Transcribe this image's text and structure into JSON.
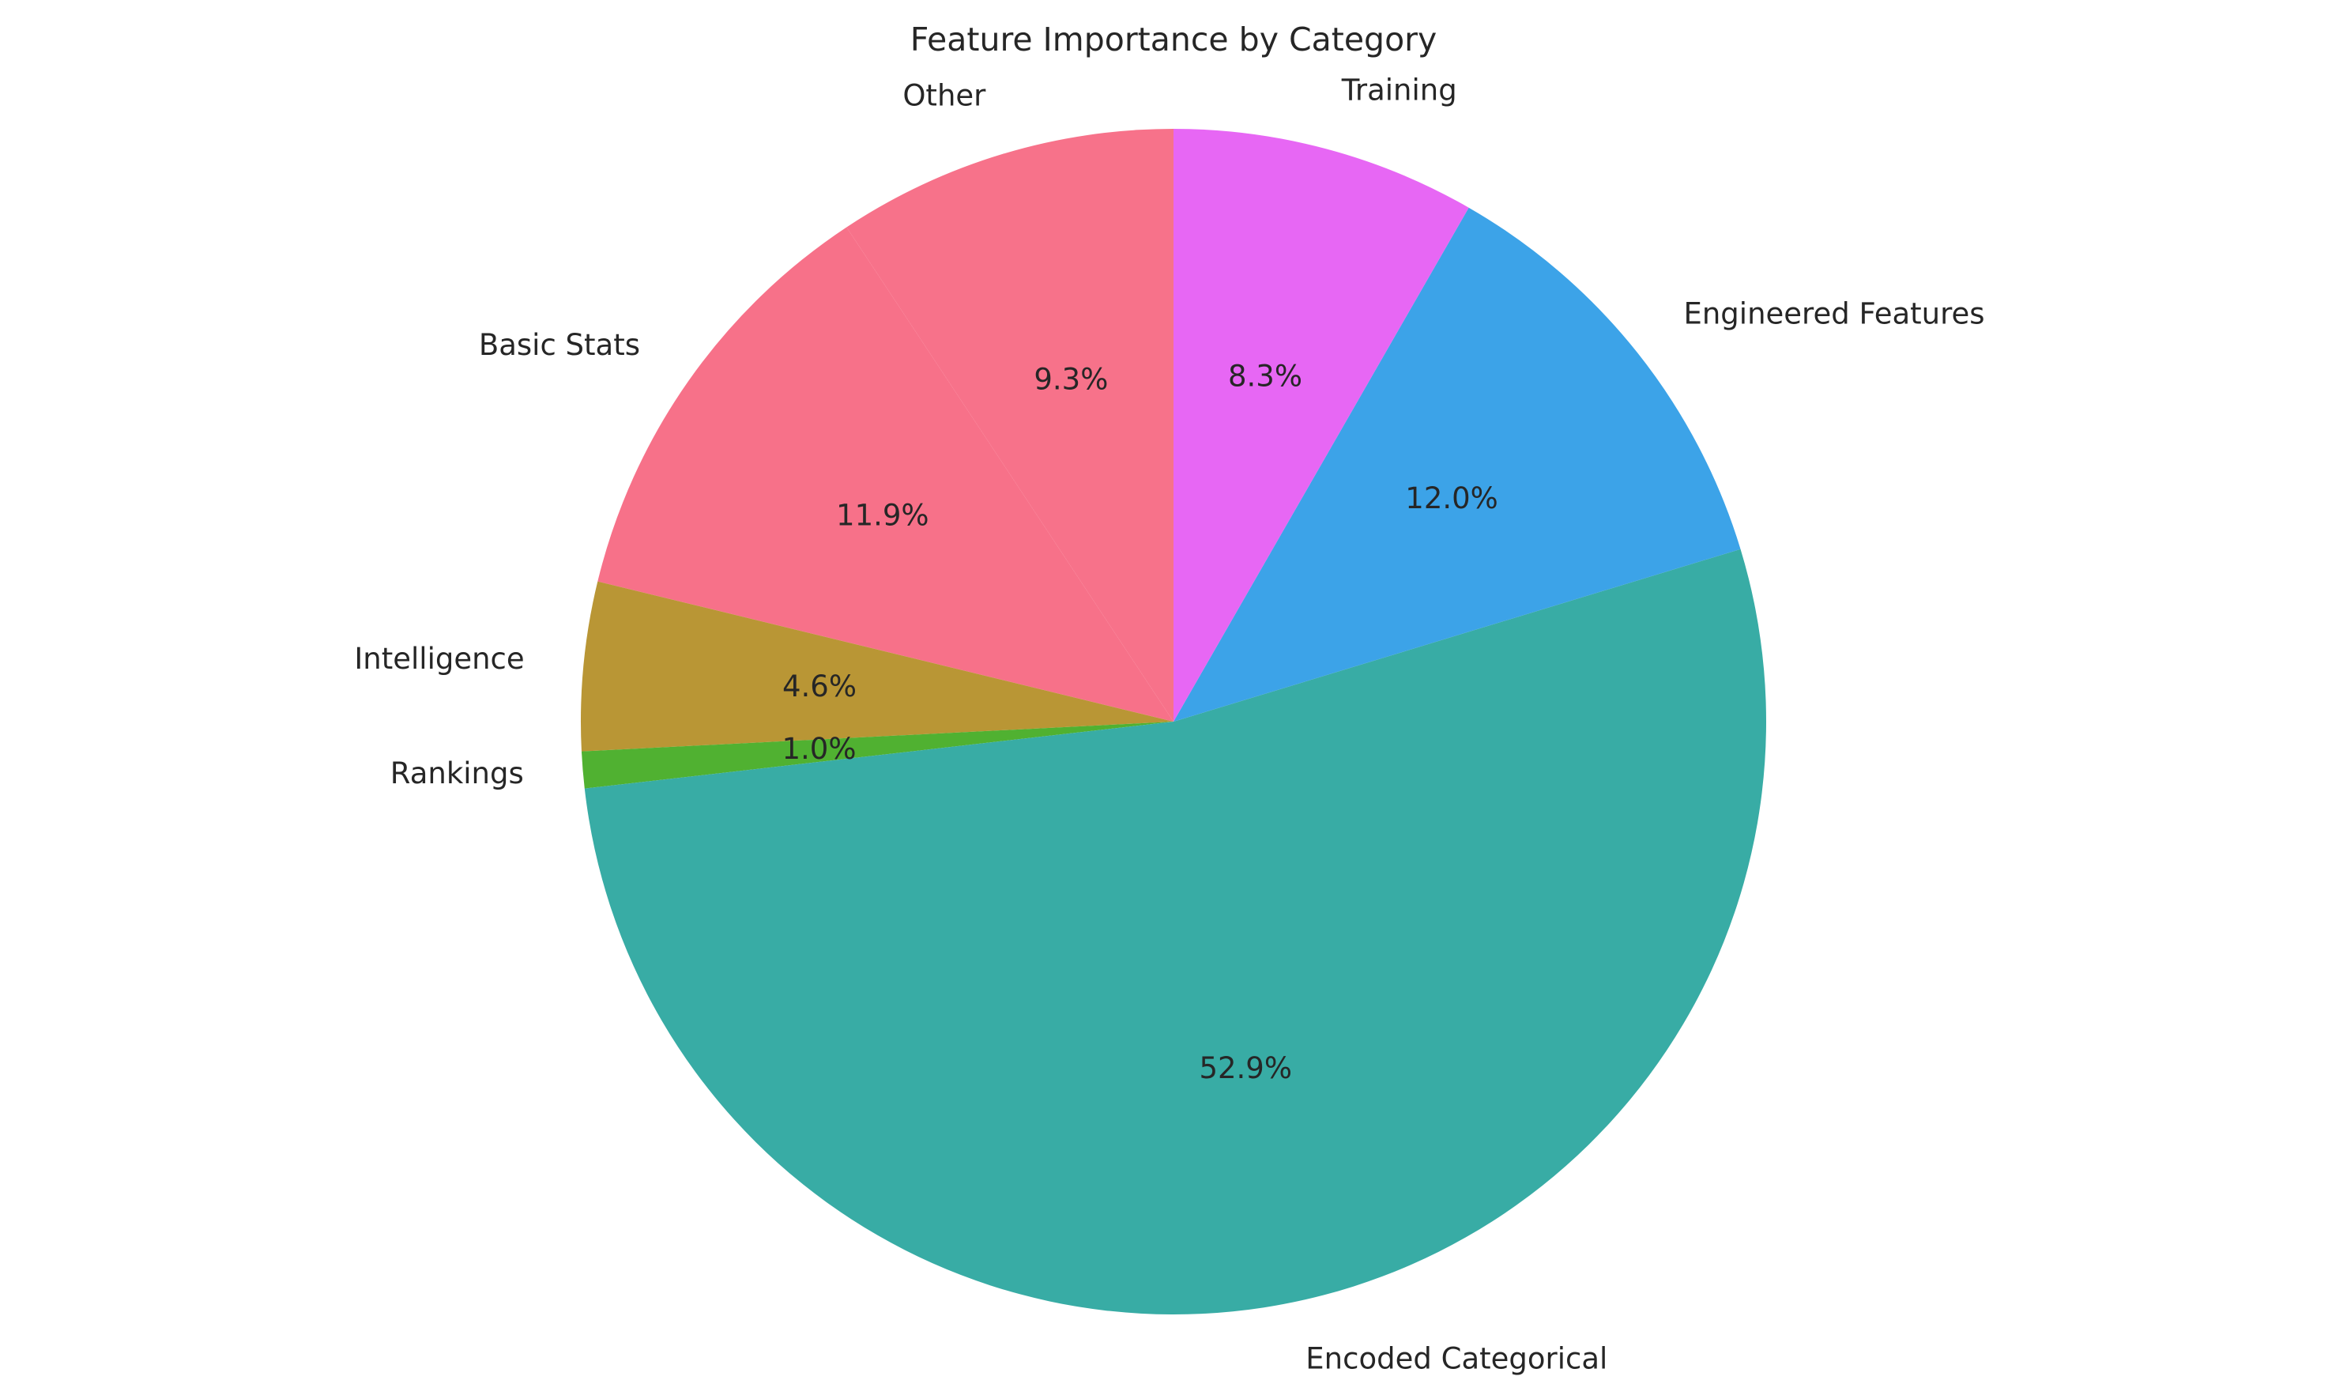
{
  "chart_data": {
    "type": "pie",
    "title": "Feature Importance by Category",
    "autopct_format": "%.1f%%",
    "start_angle_deg": 90,
    "direction": "counterclockwise",
    "slices": [
      {
        "label": "Other",
        "value": 9.3,
        "pct_text": "9.3%",
        "color": "#f7728a"
      },
      {
        "label": "Basic Stats",
        "value": 11.9,
        "pct_text": "11.9%",
        "color": "#f77189"
      },
      {
        "label": "Intelligence",
        "value": 4.6,
        "pct_text": "4.6%",
        "color": "#b99635"
      },
      {
        "label": "Rankings",
        "value": 1.0,
        "pct_text": "1.0%",
        "color": "#50b131"
      },
      {
        "label": "Encoded Categorical",
        "value": 52.9,
        "pct_text": "52.9%",
        "color": "#38aca5"
      },
      {
        "label": "Engineered Features",
        "value": 12.0,
        "pct_text": "12.0%",
        "color": "#3ca3e8"
      },
      {
        "label": "Training",
        "value": 8.3,
        "pct_text": "8.3%",
        "color": "#e767f4"
      }
    ]
  }
}
